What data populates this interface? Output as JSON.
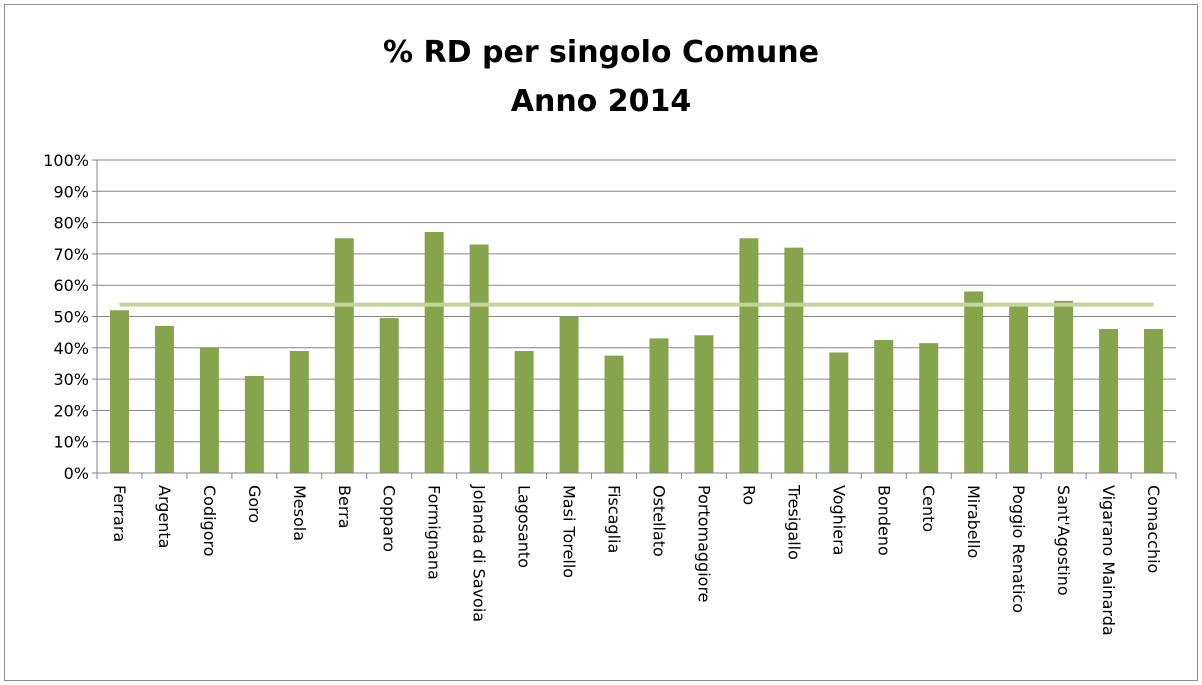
{
  "chart_data": {
    "type": "bar",
    "title": "% RD per singolo Comune",
    "subtitle": "Anno 2014",
    "categories": [
      "Ferrara",
      "Argenta",
      "Codigoro",
      "Goro",
      "Mesola",
      "Berra",
      "Copparo",
      "Formignana",
      "Jolanda di Savoia",
      "Lagosanto",
      "Masi Torello",
      "Fiscaglia",
      "Ostellato",
      "Portomaggiore",
      "Ro",
      "Tresigallo",
      "Voghiera",
      "Bondeno",
      "Cento",
      "Mirabello",
      "Poggio Renatico",
      "Sant'Agostino",
      "Vigarano Mainarda",
      "Comacchio"
    ],
    "values": [
      52,
      47,
      40,
      31,
      39,
      75,
      49.5,
      77,
      73,
      39,
      50,
      37.5,
      43,
      44,
      75,
      72,
      38.5,
      42.5,
      41.5,
      58,
      53.5,
      55,
      46,
      46
    ],
    "reference_line": 53.8,
    "ylim": [
      0,
      100
    ],
    "yticks": [
      "0%",
      "10%",
      "20%",
      "30%",
      "40%",
      "50%",
      "60%",
      "70%",
      "80%",
      "90%",
      "100%"
    ],
    "grid": true,
    "colors": {
      "bar": "#86A44C",
      "reference_line": "#C2D69B",
      "grid": "#868686",
      "axis": "#868686"
    }
  }
}
